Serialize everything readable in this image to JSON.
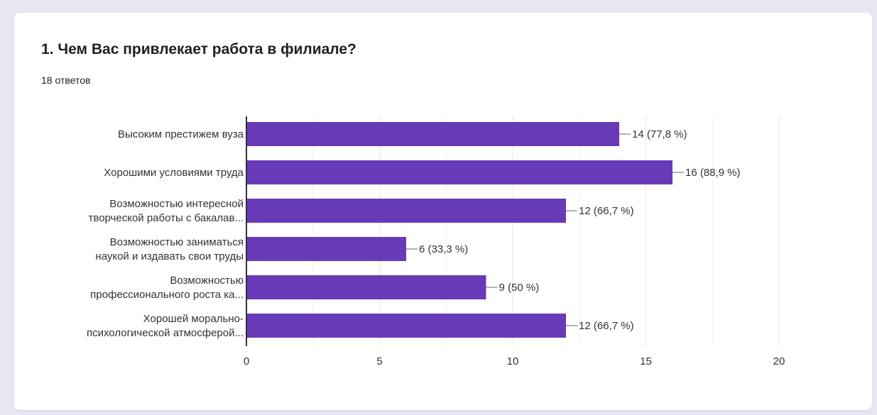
{
  "card": {
    "title": "1. Чем Вас привлекает работа в филиале?",
    "responses": "18 ответов"
  },
  "colors": {
    "bar": "#673ab7",
    "grid": "#e6e6e6",
    "axis": "#333333",
    "text": "#333333"
  },
  "chart_data": {
    "type": "bar",
    "orientation": "horizontal",
    "categories": [
      [
        "Высоким престижем вуза"
      ],
      [
        "Хорошими условиями труда"
      ],
      [
        "Возможностью интересной",
        "творческой работы с бакалав..."
      ],
      [
        "Возможностью заниматься",
        "наукой и издавать свои труды"
      ],
      [
        "Возможностью",
        "профессионального роста ка..."
      ],
      [
        "Хорошей морально-",
        "психологической атмосферой..."
      ]
    ],
    "values": [
      14,
      16,
      12,
      6,
      9,
      12
    ],
    "data_labels": [
      "14 (77,8 %)",
      "16 (88,9 %)",
      "12 (66,7 %)",
      "6 (33,3 %)",
      "9 (50 %)",
      "12 (66,7 %)"
    ],
    "xlim": [
      0,
      20
    ],
    "xticks": [
      "0",
      "5",
      "10",
      "15",
      "20"
    ],
    "grid": true
  }
}
